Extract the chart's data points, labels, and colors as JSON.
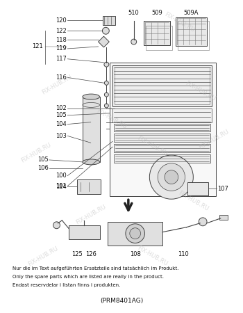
{
  "title": "(PRM8401AG)",
  "bg_color": "#ffffff",
  "footer_lines": [
    "Nur die im Text aufgeführten Ersatzteile sind tatsächlich im Produkt.",
    "Only the spare parts which are listed are really in the product.",
    "Endast reservdelar i listan finns i produkten."
  ]
}
